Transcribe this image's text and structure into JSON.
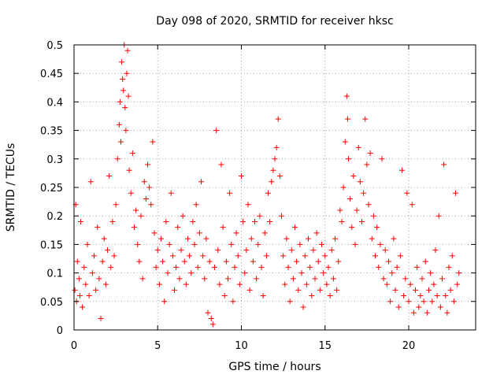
{
  "chart_data": {
    "type": "scatter",
    "title": "Day 098 of 2020, SRMTID for receiver hksc",
    "xlabel": "GPS time / hours",
    "ylabel": "SRMTID / TECUs",
    "xlim": [
      0,
      24
    ],
    "ylim": [
      0,
      0.5
    ],
    "x_ticks": [
      0,
      5,
      10,
      15,
      20
    ],
    "x_tick_labels": [
      "0",
      "5",
      "10",
      "15",
      "20"
    ],
    "y_ticks": [
      0,
      0.05,
      0.1,
      0.15,
      0.2,
      0.25,
      0.3,
      0.35,
      0.4,
      0.45,
      0.5
    ],
    "y_tick_labels": [
      "0",
      "0.05",
      "0.1",
      "0.15",
      "0.2",
      "0.25",
      "0.3",
      "0.35",
      "0.4",
      "0.45",
      "0.5"
    ],
    "grid": true,
    "marker": "+",
    "color": "#ff0000",
    "series": [
      {
        "points": [
          [
            0.05,
            0.07
          ],
          [
            0.1,
            0.22
          ],
          [
            0.15,
            0.05
          ],
          [
            0.2,
            0.12
          ],
          [
            0.3,
            0.09
          ],
          [
            0.35,
            0.06
          ],
          [
            0.4,
            0.19
          ],
          [
            0.5,
            0.04
          ],
          [
            0.6,
            0.11
          ],
          [
            0.7,
            0.08
          ],
          [
            0.8,
            0.15
          ],
          [
            0.9,
            0.06
          ],
          [
            1.0,
            0.26
          ],
          [
            1.1,
            0.1
          ],
          [
            1.2,
            0.13
          ],
          [
            1.3,
            0.07
          ],
          [
            1.4,
            0.18
          ],
          [
            1.5,
            0.09
          ],
          [
            1.6,
            0.02
          ],
          [
            1.7,
            0.12
          ],
          [
            1.8,
            0.16
          ],
          [
            1.9,
            0.08
          ],
          [
            2.0,
            0.14
          ],
          [
            2.1,
            0.27
          ],
          [
            2.2,
            0.11
          ],
          [
            2.3,
            0.19
          ],
          [
            2.4,
            0.13
          ],
          [
            2.5,
            0.22
          ],
          [
            2.6,
            0.3
          ],
          [
            2.7,
            0.36
          ],
          [
            2.75,
            0.4
          ],
          [
            2.8,
            0.33
          ],
          [
            2.85,
            0.47
          ],
          [
            2.9,
            0.44
          ],
          [
            2.95,
            0.42
          ],
          [
            3.0,
            0.5
          ],
          [
            3.05,
            0.39
          ],
          [
            3.1,
            0.35
          ],
          [
            3.15,
            0.45
          ],
          [
            3.2,
            0.49
          ],
          [
            3.25,
            0.41
          ],
          [
            3.3,
            0.28
          ],
          [
            3.4,
            0.24
          ],
          [
            3.5,
            0.31
          ],
          [
            3.6,
            0.18
          ],
          [
            3.7,
            0.21
          ],
          [
            3.8,
            0.15
          ],
          [
            3.9,
            0.12
          ],
          [
            4.0,
            0.2
          ],
          [
            4.1,
            0.09
          ],
          [
            4.2,
            0.26
          ],
          [
            4.3,
            0.23
          ],
          [
            4.4,
            0.29
          ],
          [
            4.5,
            0.25
          ],
          [
            4.6,
            0.22
          ],
          [
            4.7,
            0.33
          ],
          [
            4.8,
            0.17
          ],
          [
            4.9,
            0.11
          ],
          [
            5.0,
            0.14
          ],
          [
            5.1,
            0.08
          ],
          [
            5.2,
            0.16
          ],
          [
            5.3,
            0.12
          ],
          [
            5.4,
            0.05
          ],
          [
            5.5,
            0.19
          ],
          [
            5.6,
            0.1
          ],
          [
            5.7,
            0.15
          ],
          [
            5.8,
            0.24
          ],
          [
            5.9,
            0.13
          ],
          [
            6.0,
            0.07
          ],
          [
            6.1,
            0.11
          ],
          [
            6.2,
            0.18
          ],
          [
            6.3,
            0.09
          ],
          [
            6.4,
            0.14
          ],
          [
            6.5,
            0.2
          ],
          [
            6.6,
            0.12
          ],
          [
            6.7,
            0.08
          ],
          [
            6.8,
            0.16
          ],
          [
            6.9,
            0.13
          ],
          [
            7.0,
            0.1
          ],
          [
            7.1,
            0.19
          ],
          [
            7.2,
            0.15
          ],
          [
            7.3,
            0.22
          ],
          [
            7.4,
            0.11
          ],
          [
            7.5,
            0.17
          ],
          [
            7.6,
            0.26
          ],
          [
            7.7,
            0.13
          ],
          [
            7.8,
            0.09
          ],
          [
            7.9,
            0.16
          ],
          [
            8.0,
            0.03
          ],
          [
            8.1,
            0.12
          ],
          [
            8.2,
            0.02
          ],
          [
            8.3,
            0.01
          ],
          [
            8.4,
            0.11
          ],
          [
            8.5,
            0.35
          ],
          [
            8.6,
            0.14
          ],
          [
            8.7,
            0.08
          ],
          [
            8.8,
            0.29
          ],
          [
            8.9,
            0.18
          ],
          [
            9.0,
            0.06
          ],
          [
            9.1,
            0.12
          ],
          [
            9.2,
            0.09
          ],
          [
            9.3,
            0.24
          ],
          [
            9.4,
            0.15
          ],
          [
            9.5,
            0.05
          ],
          [
            9.6,
            0.11
          ],
          [
            9.7,
            0.17
          ],
          [
            9.8,
            0.13
          ],
          [
            9.9,
            0.08
          ],
          [
            10.0,
            0.27
          ],
          [
            10.1,
            0.19
          ],
          [
            10.2,
            0.1
          ],
          [
            10.3,
            0.14
          ],
          [
            10.4,
            0.22
          ],
          [
            10.5,
            0.07
          ],
          [
            10.6,
            0.16
          ],
          [
            10.7,
            0.12
          ],
          [
            10.8,
            0.19
          ],
          [
            10.9,
            0.09
          ],
          [
            11.0,
            0.15
          ],
          [
            11.1,
            0.2
          ],
          [
            11.2,
            0.11
          ],
          [
            11.3,
            0.06
          ],
          [
            11.4,
            0.17
          ],
          [
            11.5,
            0.13
          ],
          [
            11.6,
            0.24
          ],
          [
            11.7,
            0.19
          ],
          [
            11.8,
            0.26
          ],
          [
            11.9,
            0.28
          ],
          [
            12.0,
            0.3
          ],
          [
            12.1,
            0.32
          ],
          [
            12.2,
            0.37
          ],
          [
            12.3,
            0.27
          ],
          [
            12.4,
            0.2
          ],
          [
            12.5,
            0.13
          ],
          [
            12.6,
            0.08
          ],
          [
            12.7,
            0.16
          ],
          [
            12.8,
            0.11
          ],
          [
            12.9,
            0.05
          ],
          [
            13.0,
            0.14
          ],
          [
            13.1,
            0.09
          ],
          [
            13.2,
            0.18
          ],
          [
            13.3,
            0.12
          ],
          [
            13.4,
            0.07
          ],
          [
            13.5,
            0.15
          ],
          [
            13.6,
            0.1
          ],
          [
            13.7,
            0.04
          ],
          [
            13.8,
            0.13
          ],
          [
            13.9,
            0.08
          ],
          [
            14.0,
            0.16
          ],
          [
            14.1,
            0.11
          ],
          [
            14.2,
            0.06
          ],
          [
            14.3,
            0.14
          ],
          [
            14.4,
            0.09
          ],
          [
            14.5,
            0.17
          ],
          [
            14.6,
            0.12
          ],
          [
            14.7,
            0.07
          ],
          [
            14.8,
            0.15
          ],
          [
            14.9,
            0.1
          ],
          [
            15.0,
            0.13
          ],
          [
            15.1,
            0.08
          ],
          [
            15.2,
            0.11
          ],
          [
            15.3,
            0.06
          ],
          [
            15.4,
            0.14
          ],
          [
            15.5,
            0.09
          ],
          [
            15.6,
            0.16
          ],
          [
            15.7,
            0.07
          ],
          [
            15.8,
            0.12
          ],
          [
            15.9,
            0.21
          ],
          [
            16.0,
            0.19
          ],
          [
            16.1,
            0.25
          ],
          [
            16.2,
            0.33
          ],
          [
            16.3,
            0.41
          ],
          [
            16.35,
            0.37
          ],
          [
            16.4,
            0.3
          ],
          [
            16.5,
            0.23
          ],
          [
            16.6,
            0.18
          ],
          [
            16.7,
            0.27
          ],
          [
            16.8,
            0.15
          ],
          [
            16.9,
            0.21
          ],
          [
            17.0,
            0.32
          ],
          [
            17.1,
            0.26
          ],
          [
            17.2,
            0.19
          ],
          [
            17.3,
            0.24
          ],
          [
            17.4,
            0.37
          ],
          [
            17.5,
            0.29
          ],
          [
            17.6,
            0.22
          ],
          [
            17.7,
            0.31
          ],
          [
            17.8,
            0.16
          ],
          [
            17.9,
            0.2
          ],
          [
            18.0,
            0.13
          ],
          [
            18.1,
            0.18
          ],
          [
            18.2,
            0.11
          ],
          [
            18.3,
            0.15
          ],
          [
            18.4,
            0.3
          ],
          [
            18.5,
            0.09
          ],
          [
            18.6,
            0.14
          ],
          [
            18.7,
            0.08
          ],
          [
            18.8,
            0.12
          ],
          [
            18.9,
            0.05
          ],
          [
            19.0,
            0.1
          ],
          [
            19.1,
            0.16
          ],
          [
            19.2,
            0.07
          ],
          [
            19.3,
            0.11
          ],
          [
            19.4,
            0.04
          ],
          [
            19.5,
            0.13
          ],
          [
            19.6,
            0.28
          ],
          [
            19.7,
            0.06
          ],
          [
            19.8,
            0.09
          ],
          [
            19.9,
            0.24
          ],
          [
            20.0,
            0.05
          ],
          [
            20.1,
            0.08
          ],
          [
            20.2,
            0.22
          ],
          [
            20.3,
            0.03
          ],
          [
            20.4,
            0.07
          ],
          [
            20.5,
            0.11
          ],
          [
            20.6,
            0.04
          ],
          [
            20.7,
            0.06
          ],
          [
            20.8,
            0.09
          ],
          [
            20.9,
            0.05
          ],
          [
            21.0,
            0.12
          ],
          [
            21.1,
            0.03
          ],
          [
            21.2,
            0.07
          ],
          [
            21.3,
            0.1
          ],
          [
            21.4,
            0.05
          ],
          [
            21.5,
            0.08
          ],
          [
            21.6,
            0.14
          ],
          [
            21.7,
            0.06
          ],
          [
            21.8,
            0.2
          ],
          [
            21.9,
            0.04
          ],
          [
            22.0,
            0.09
          ],
          [
            22.1,
            0.29
          ],
          [
            22.2,
            0.06
          ],
          [
            22.3,
            0.03
          ],
          [
            22.4,
            0.11
          ],
          [
            22.5,
            0.07
          ],
          [
            22.6,
            0.13
          ],
          [
            22.7,
            0.05
          ],
          [
            22.8,
            0.24
          ],
          [
            22.9,
            0.08
          ],
          [
            23.0,
            0.1
          ]
        ]
      }
    ]
  }
}
